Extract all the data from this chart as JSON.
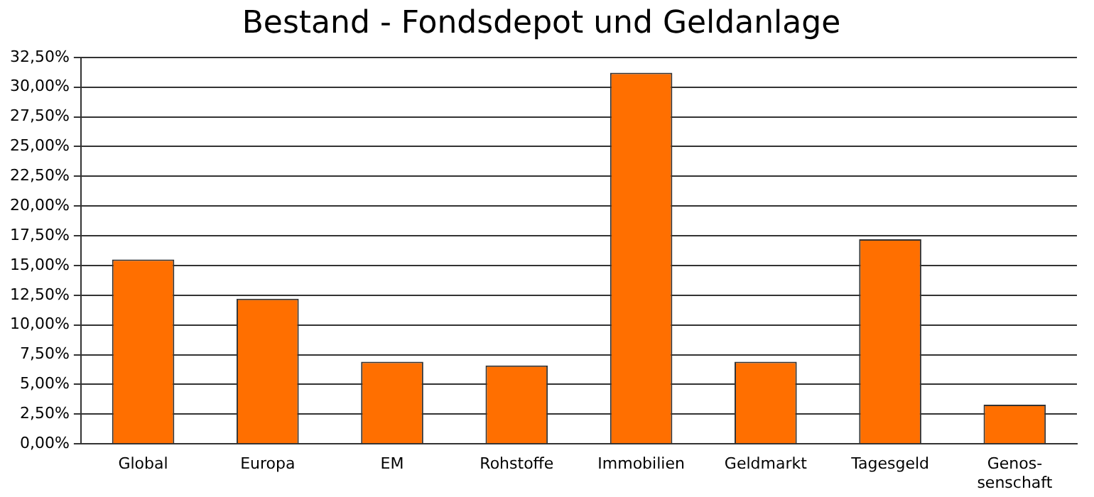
{
  "chart_data": {
    "type": "bar",
    "title": "Bestand - Fondsdepot und Geldanlage",
    "categories": [
      "Global",
      "Europa",
      "EM",
      "Rohstoffe",
      "Immobilien",
      "Geldmarkt",
      "Tagesgeld",
      "Genos-\nsenschaft"
    ],
    "values": [
      15.5,
      12.2,
      6.9,
      6.6,
      31.2,
      6.9,
      17.2,
      3.3
    ],
    "color": "#ff6f00",
    "ylim": [
      0,
      32.5
    ],
    "yticks": [
      {
        "value": 0,
        "label": "0,00%"
      },
      {
        "value": 2.5,
        "label": "2,50%"
      },
      {
        "value": 5,
        "label": "5,00%"
      },
      {
        "value": 7.5,
        "label": "7,50%"
      },
      {
        "value": 10,
        "label": "10,00%"
      },
      {
        "value": 12.5,
        "label": "12,50%"
      },
      {
        "value": 15,
        "label": "15,00%"
      },
      {
        "value": 17.5,
        "label": "17,50%"
      },
      {
        "value": 20,
        "label": "20,00%"
      },
      {
        "value": 22.5,
        "label": "22,50%"
      },
      {
        "value": 25,
        "label": "25,00%"
      },
      {
        "value": 27.5,
        "label": "27,50%"
      },
      {
        "value": 30,
        "label": "30,00%"
      },
      {
        "value": 32.5,
        "label": "32,50%"
      }
    ],
    "grid": "y"
  }
}
